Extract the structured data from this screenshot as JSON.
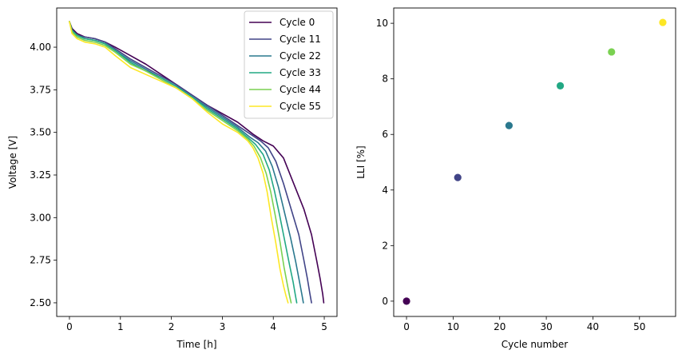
{
  "chart_data": [
    {
      "type": "line",
      "xlabel": "Time [h]",
      "ylabel": "Voltage [V]",
      "xlim": [
        -0.25,
        5.25
      ],
      "ylim": [
        2.42,
        4.23
      ],
      "xticks": [
        0,
        1,
        2,
        3,
        4,
        5
      ],
      "xtick_labels": [
        "0",
        "1",
        "2",
        "3",
        "4",
        "5"
      ],
      "yticks": [
        2.5,
        2.75,
        3.0,
        3.25,
        3.5,
        3.75,
        4.0
      ],
      "ytick_labels": [
        "2.50",
        "2.75",
        "3.00",
        "3.25",
        "3.50",
        "3.75",
        "4.00"
      ],
      "legend_position": "top-right",
      "grid": false,
      "series": [
        {
          "name": "Cycle 0",
          "color": "#440154",
          "x": [
            0,
            0.05,
            0.15,
            0.3,
            0.5,
            0.7,
            0.9,
            1.2,
            1.5,
            1.8,
            2.1,
            2.4,
            2.7,
            3.0,
            3.3,
            3.6,
            3.8,
            4.0,
            4.2,
            4.4,
            4.6,
            4.75,
            4.85,
            4.92,
            4.97,
            4.99
          ],
          "y": [
            4.15,
            4.11,
            4.08,
            4.06,
            4.05,
            4.03,
            4.0,
            3.95,
            3.9,
            3.84,
            3.78,
            3.72,
            3.66,
            3.61,
            3.56,
            3.49,
            3.45,
            3.42,
            3.35,
            3.2,
            3.05,
            2.9,
            2.75,
            2.64,
            2.55,
            2.5
          ]
        },
        {
          "name": "Cycle 11",
          "color": "#414487",
          "x": [
            0,
            0.05,
            0.15,
            0.3,
            0.5,
            0.7,
            0.9,
            1.2,
            1.5,
            1.8,
            2.1,
            2.4,
            2.7,
            3.0,
            3.3,
            3.6,
            3.75,
            3.9,
            4.05,
            4.2,
            4.35,
            4.5,
            4.6,
            4.67,
            4.72,
            4.75
          ],
          "y": [
            4.15,
            4.1,
            4.07,
            4.06,
            4.05,
            4.03,
            3.99,
            3.93,
            3.88,
            3.83,
            3.78,
            3.72,
            3.66,
            3.6,
            3.54,
            3.48,
            3.45,
            3.41,
            3.33,
            3.2,
            3.05,
            2.9,
            2.75,
            2.64,
            2.55,
            2.5
          ]
        },
        {
          "name": "Cycle 22",
          "color": "#2a788e",
          "x": [
            0,
            0.05,
            0.15,
            0.3,
            0.5,
            0.7,
            0.9,
            1.2,
            1.5,
            1.8,
            2.1,
            2.4,
            2.7,
            3.0,
            3.3,
            3.55,
            3.7,
            3.85,
            3.98,
            4.1,
            4.22,
            4.34,
            4.44,
            4.51,
            4.56,
            4.59
          ],
          "y": [
            4.15,
            4.1,
            4.07,
            4.05,
            4.04,
            4.02,
            3.98,
            3.92,
            3.87,
            3.82,
            3.77,
            3.71,
            3.65,
            3.59,
            3.53,
            3.47,
            3.44,
            3.39,
            3.3,
            3.18,
            3.03,
            2.88,
            2.74,
            2.63,
            2.55,
            2.5
          ]
        },
        {
          "name": "Cycle 33",
          "color": "#22a884",
          "x": [
            0,
            0.05,
            0.15,
            0.3,
            0.5,
            0.7,
            0.9,
            1.2,
            1.5,
            1.8,
            2.1,
            2.4,
            2.7,
            3.0,
            3.3,
            3.5,
            3.65,
            3.8,
            3.92,
            4.02,
            4.12,
            4.22,
            4.32,
            4.39,
            4.43,
            4.46
          ],
          "y": [
            4.15,
            4.1,
            4.07,
            4.05,
            4.04,
            4.02,
            3.98,
            3.91,
            3.86,
            3.82,
            3.77,
            3.71,
            3.64,
            3.58,
            3.52,
            3.47,
            3.43,
            3.37,
            3.28,
            3.16,
            3.02,
            2.87,
            2.72,
            2.62,
            2.55,
            2.5
          ]
        },
        {
          "name": "Cycle 44",
          "color": "#7ad151",
          "x": [
            0,
            0.05,
            0.15,
            0.3,
            0.5,
            0.7,
            0.9,
            1.2,
            1.5,
            1.8,
            2.1,
            2.4,
            2.7,
            3.0,
            3.3,
            3.5,
            3.62,
            3.75,
            3.86,
            3.95,
            4.04,
            4.13,
            4.21,
            4.28,
            4.32,
            4.35
          ],
          "y": [
            4.15,
            4.09,
            4.06,
            4.04,
            4.03,
            4.01,
            3.97,
            3.9,
            3.86,
            3.81,
            3.76,
            3.7,
            3.63,
            3.57,
            3.51,
            3.46,
            3.42,
            3.35,
            3.26,
            3.15,
            3.01,
            2.86,
            2.71,
            2.6,
            2.54,
            2.5
          ]
        },
        {
          "name": "Cycle 55",
          "color": "#fde725",
          "x": [
            0,
            0.05,
            0.15,
            0.3,
            0.5,
            0.7,
            0.9,
            1.2,
            1.5,
            1.8,
            2.1,
            2.4,
            2.7,
            3.0,
            3.3,
            3.5,
            3.6,
            3.7,
            3.8,
            3.88,
            3.96,
            4.05,
            4.13,
            4.2,
            4.25,
            4.29
          ],
          "y": [
            4.15,
            4.08,
            4.05,
            4.03,
            4.02,
            4.0,
            3.95,
            3.88,
            3.84,
            3.8,
            3.76,
            3.7,
            3.62,
            3.55,
            3.5,
            3.45,
            3.41,
            3.35,
            3.26,
            3.15,
            3.0,
            2.85,
            2.7,
            2.6,
            2.54,
            2.5
          ]
        }
      ]
    },
    {
      "type": "scatter",
      "xlabel": "Cycle number",
      "ylabel": "LLI [%]",
      "xlim": [
        -2.75,
        57.75
      ],
      "ylim": [
        -0.55,
        10.55
      ],
      "xticks": [
        0,
        10,
        20,
        30,
        40,
        50
      ],
      "xtick_labels": [
        "0",
        "10",
        "20",
        "30",
        "40",
        "50"
      ],
      "yticks": [
        0,
        2,
        4,
        6,
        8,
        10
      ],
      "ytick_labels": [
        "0",
        "2",
        "4",
        "6",
        "8",
        "10"
      ],
      "grid": false,
      "points": [
        {
          "x": 0,
          "y": 0,
          "color": "#440154"
        },
        {
          "x": 11,
          "y": 4.45,
          "color": "#414487"
        },
        {
          "x": 22,
          "y": 6.32,
          "color": "#2a788e"
        },
        {
          "x": 33,
          "y": 7.75,
          "color": "#22a884"
        },
        {
          "x": 44,
          "y": 8.97,
          "color": "#7ad151"
        },
        {
          "x": 55,
          "y": 10.03,
          "color": "#fde725"
        }
      ]
    }
  ]
}
